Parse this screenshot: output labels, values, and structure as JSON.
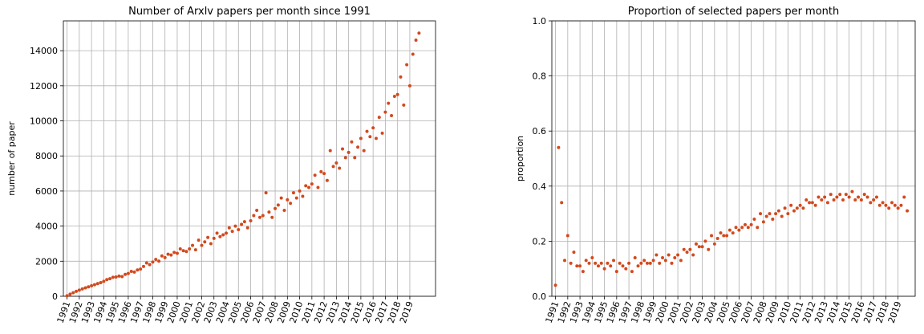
{
  "chart_data": [
    {
      "type": "scatter",
      "title": "Number of Arxlv papers per month since 1991",
      "y_label": "number of paper",
      "color": "#d2491e",
      "grid": true,
      "xlim": [
        1990.7,
        2021.1
      ],
      "ylim": [
        0,
        15700
      ],
      "xticks": [
        1991,
        1992,
        1993,
        1994,
        1995,
        1996,
        1997,
        1998,
        1999,
        2000,
        2001,
        2002,
        2003,
        2004,
        2005,
        2006,
        2007,
        2008,
        2009,
        2010,
        2011,
        2012,
        2013,
        2014,
        2015,
        2016,
        2017,
        2018,
        2019
      ],
      "yticks": [
        0,
        2000,
        4000,
        6000,
        8000,
        10000,
        12000,
        14000
      ],
      "x": [
        1991,
        1991.25,
        1991.5,
        1991.75,
        1992,
        1992.25,
        1992.5,
        1992.75,
        1993,
        1993.25,
        1993.5,
        1993.75,
        1994,
        1994.25,
        1994.5,
        1994.75,
        1995,
        1995.25,
        1995.5,
        1995.75,
        1996,
        1996.25,
        1996.5,
        1996.75,
        1997,
        1997.25,
        1997.5,
        1997.75,
        1998,
        1998.25,
        1998.5,
        1998.75,
        1999,
        1999.25,
        1999.5,
        1999.75,
        2000,
        2000.25,
        2000.5,
        2000.75,
        2001,
        2001.25,
        2001.5,
        2001.75,
        2002,
        2002.25,
        2002.5,
        2002.75,
        2003,
        2003.25,
        2003.5,
        2003.75,
        2004,
        2004.25,
        2004.5,
        2004.75,
        2005,
        2005.25,
        2005.5,
        2005.75,
        2006,
        2006.25,
        2006.5,
        2006.75,
        2007,
        2007.25,
        2007.5,
        2007.75,
        2008,
        2008.25,
        2008.5,
        2008.75,
        2009,
        2009.25,
        2009.5,
        2009.75,
        2010,
        2010.25,
        2010.5,
        2010.75,
        2011,
        2011.25,
        2011.5,
        2011.75,
        2012,
        2012.25,
        2012.5,
        2012.75,
        2013,
        2013.25,
        2013.5,
        2013.75,
        2014,
        2014.25,
        2014.5,
        2014.75,
        2015,
        2015.25,
        2015.5,
        2015.75,
        2016,
        2016.25,
        2016.5,
        2016.75,
        2017,
        2017.25,
        2017.5,
        2017.75,
        2018,
        2018.25,
        2018.5,
        2018.75,
        2019,
        2019.25,
        2019.5,
        2019.75
      ],
      "values": [
        30,
        120,
        200,
        280,
        350,
        420,
        480,
        540,
        600,
        660,
        720,
        780,
        850,
        950,
        1000,
        1080,
        1100,
        1150,
        1120,
        1250,
        1300,
        1420,
        1380,
        1500,
        1550,
        1700,
        1900,
        1800,
        1950,
        2100,
        2000,
        2300,
        2200,
        2400,
        2350,
        2500,
        2450,
        2700,
        2600,
        2550,
        2700,
        2900,
        2650,
        3200,
        2900,
        3100,
        3350,
        3000,
        3300,
        3600,
        3400,
        3500,
        3600,
        3900,
        3700,
        4000,
        3800,
        4100,
        4250,
        3900,
        4300,
        4600,
        4900,
        4500,
        4600,
        5900,
        4800,
        4500,
        5000,
        5200,
        5600,
        4900,
        5500,
        5300,
        5900,
        5600,
        6000,
        5700,
        6300,
        6200,
        6400,
        6900,
        6200,
        7100,
        7000,
        6600,
        8300,
        7400,
        7600,
        7300,
        8400,
        7900,
        8200,
        8800,
        7900,
        8500,
        9000,
        8300,
        9400,
        9100,
        9600,
        9000,
        10200,
        9300,
        10500,
        11000,
        10300,
        11400,
        11500,
        12500,
        10900,
        13200,
        12000,
        13800,
        14600,
        15000
      ]
    },
    {
      "type": "scatter",
      "title": "Proportion of selected papers per month",
      "y_label": "proportion",
      "color": "#d2491e",
      "grid": true,
      "xlim": [
        1990.7,
        2020.4
      ],
      "ylim": [
        0,
        1
      ],
      "xticks": [
        1991,
        1992,
        1993,
        1994,
        1995,
        1996,
        1997,
        1998,
        1999,
        2000,
        2001,
        2002,
        2003,
        2004,
        2005,
        2006,
        2007,
        2008,
        2009,
        2010,
        2011,
        2012,
        2013,
        2014,
        2015,
        2016,
        2017,
        2018,
        2019
      ],
      "yticks": [
        {
          "value": 0,
          "label": "0.0"
        },
        0.2,
        0.4,
        0.6,
        0.8,
        {
          "value": 1,
          "label": "1.0"
        }
      ],
      "x": [
        1991,
        1991.25,
        1991.5,
        1991.75,
        1992,
        1992.25,
        1992.5,
        1992.75,
        1993,
        1993.25,
        1993.5,
        1993.75,
        1994,
        1994.25,
        1994.5,
        1994.75,
        1995,
        1995.25,
        1995.5,
        1995.75,
        1996,
        1996.25,
        1996.5,
        1996.75,
        1997,
        1997.25,
        1997.5,
        1997.75,
        1998,
        1998.25,
        1998.5,
        1998.75,
        1999,
        1999.25,
        1999.5,
        1999.75,
        2000,
        2000.25,
        2000.5,
        2000.75,
        2001,
        2001.25,
        2001.5,
        2001.75,
        2002,
        2002.25,
        2002.5,
        2002.75,
        2003,
        2003.25,
        2003.5,
        2003.75,
        2004,
        2004.25,
        2004.5,
        2004.75,
        2005,
        2005.25,
        2005.5,
        2005.75,
        2006,
        2006.25,
        2006.5,
        2006.75,
        2007,
        2007.25,
        2007.5,
        2007.75,
        2008,
        2008.25,
        2008.5,
        2008.75,
        2009,
        2009.25,
        2009.5,
        2009.75,
        2010,
        2010.25,
        2010.5,
        2010.75,
        2011,
        2011.25,
        2011.5,
        2011.75,
        2012,
        2012.25,
        2012.5,
        2012.75,
        2013,
        2013.25,
        2013.5,
        2013.75,
        2014,
        2014.25,
        2014.5,
        2014.75,
        2015,
        2015.25,
        2015.5,
        2015.75,
        2016,
        2016.25,
        2016.5,
        2016.75,
        2017,
        2017.25,
        2017.5,
        2017.75,
        2018,
        2018.25,
        2018.5,
        2018.75,
        2019,
        2019.25,
        2019.5,
        2019.75
      ],
      "values": [
        0.04,
        0.54,
        0.34,
        0.13,
        0.22,
        0.12,
        0.16,
        0.11,
        0.11,
        0.09,
        0.13,
        0.12,
        0.14,
        0.12,
        0.11,
        0.12,
        0.1,
        0.12,
        0.11,
        0.13,
        0.09,
        0.12,
        0.11,
        0.1,
        0.12,
        0.09,
        0.14,
        0.11,
        0.12,
        0.13,
        0.12,
        0.12,
        0.13,
        0.15,
        0.12,
        0.14,
        0.13,
        0.15,
        0.12,
        0.14,
        0.15,
        0.13,
        0.17,
        0.16,
        0.17,
        0.15,
        0.19,
        0.18,
        0.18,
        0.2,
        0.17,
        0.22,
        0.19,
        0.21,
        0.23,
        0.22,
        0.22,
        0.24,
        0.23,
        0.25,
        0.24,
        0.25,
        0.26,
        0.25,
        0.26,
        0.28,
        0.25,
        0.3,
        0.27,
        0.29,
        0.3,
        0.28,
        0.3,
        0.31,
        0.29,
        0.32,
        0.3,
        0.33,
        0.31,
        0.32,
        0.33,
        0.32,
        0.35,
        0.34,
        0.34,
        0.33,
        0.36,
        0.35,
        0.36,
        0.34,
        0.37,
        0.35,
        0.36,
        0.37,
        0.35,
        0.37,
        0.36,
        0.38,
        0.35,
        0.36,
        0.35,
        0.37,
        0.36,
        0.34,
        0.35,
        0.36,
        0.33,
        0.34,
        0.33,
        0.32,
        0.34,
        0.33,
        0.32,
        0.33,
        0.36,
        0.31
      ]
    }
  ]
}
